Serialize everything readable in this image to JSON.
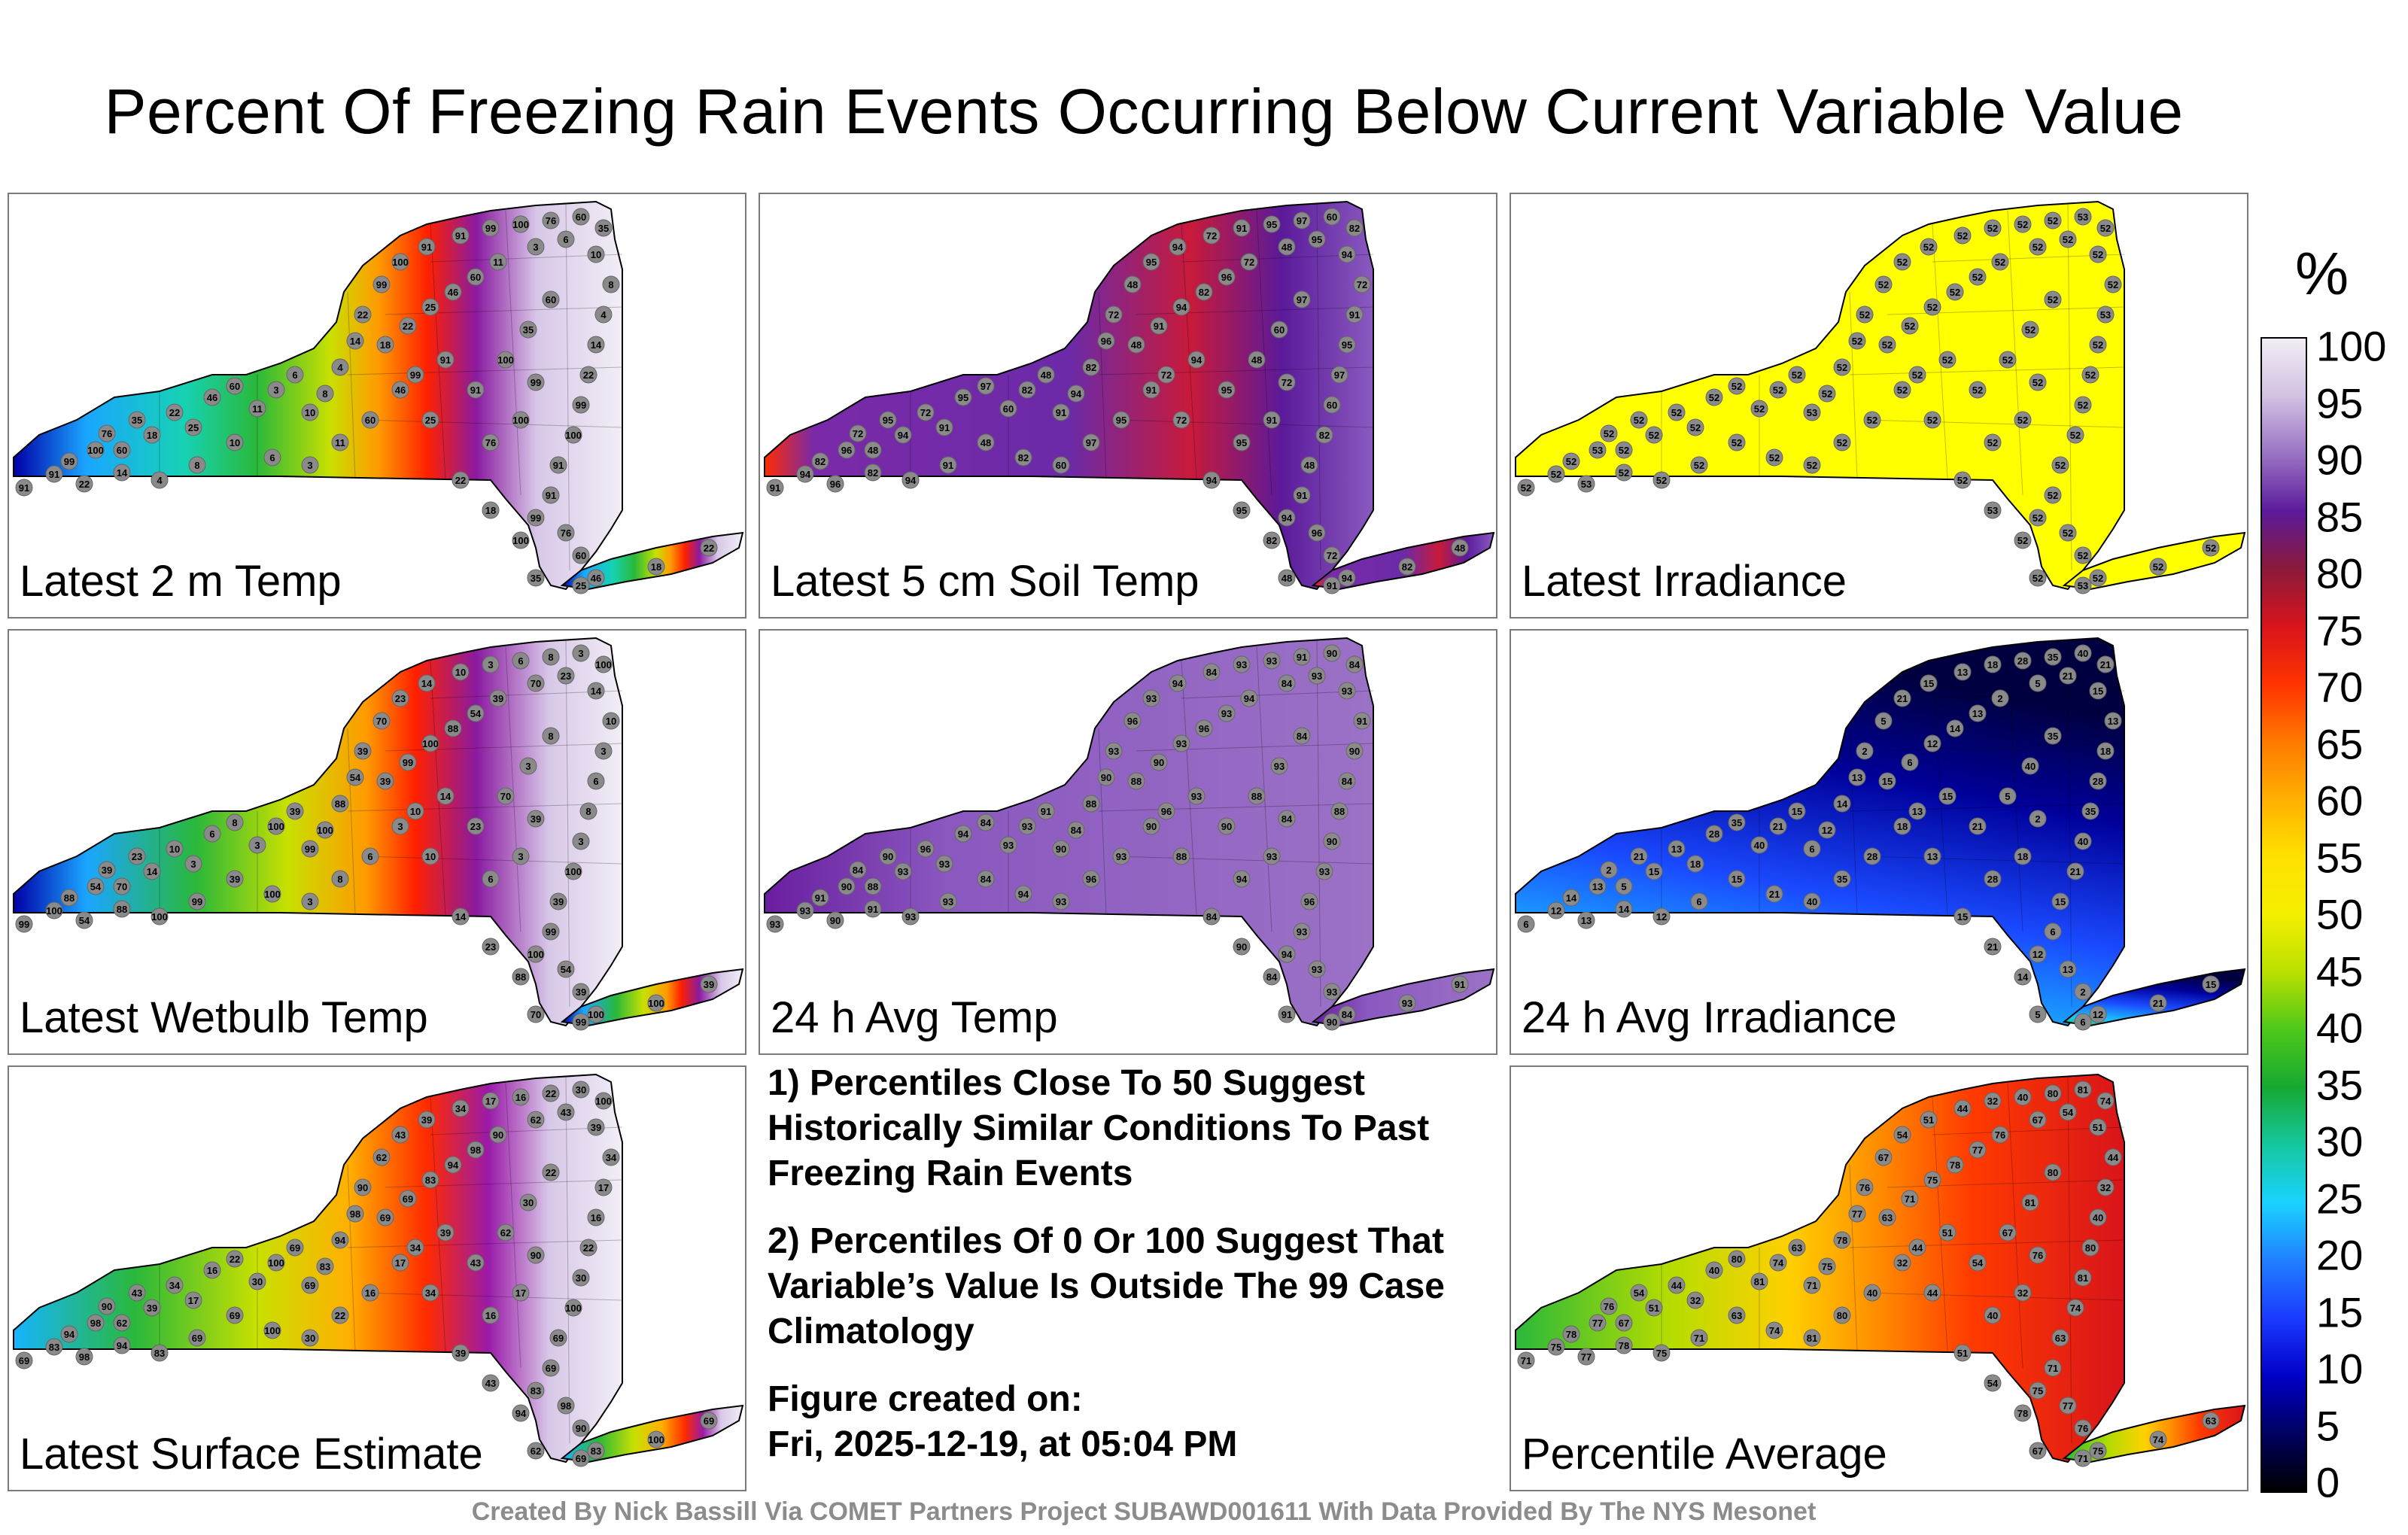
{
  "title": "Percent Of Freezing Rain Events Occurring Below Current Variable Value",
  "panels": [
    {
      "label": "Latest 2 m Temp",
      "palette": "temp",
      "sample_values": [
        "91",
        "91",
        "99",
        "100",
        "76",
        "60",
        "35",
        "18",
        "22",
        "25",
        "46",
        "60",
        "11",
        "3",
        "6",
        "10",
        "8",
        "4",
        "14",
        "22",
        "99",
        "100"
      ]
    },
    {
      "label": "Latest 5 cm Soil Temp",
      "palette": "soil",
      "sample_values": [
        "91",
        "94",
        "82",
        "96",
        "72",
        "48",
        "95",
        "94",
        "72",
        "91",
        "95",
        "97",
        "60",
        "82",
        "48"
      ]
    },
    {
      "label": "Latest Irradiance",
      "palette": "irr",
      "sample_values": [
        "52",
        "52",
        "52",
        "53",
        "52",
        "52",
        "52",
        "52",
        "52",
        "52",
        "52",
        "52"
      ]
    },
    {
      "label": "Latest Wetbulb Temp",
      "palette": "wet",
      "sample_values": [
        "99",
        "100",
        "88",
        "54",
        "39",
        "70",
        "23",
        "14",
        "10",
        "3",
        "6",
        "8",
        "3",
        "100",
        "39"
      ]
    },
    {
      "label": "24 h Avg Temp",
      "palette": "avg",
      "sample_values": [
        "93",
        "93",
        "91",
        "90",
        "84",
        "88",
        "90",
        "93",
        "96",
        "93",
        "94",
        "84"
      ]
    },
    {
      "label": "24 h Avg Irradiance",
      "palette": "avgirr",
      "sample_values": [
        "6",
        "12",
        "14",
        "13",
        "2",
        "5",
        "21",
        "15",
        "13",
        "18",
        "28",
        "35",
        "40",
        "21",
        "15"
      ]
    },
    {
      "label": "Latest Surface Estimate",
      "palette": "surf",
      "sample_values": [
        "69",
        "83",
        "94",
        "98",
        "90",
        "62",
        "43",
        "39",
        "34",
        "17",
        "16",
        "22",
        "30",
        "100",
        "69"
      ]
    },
    {
      "label": "Percentile Average",
      "palette": "pavg",
      "sample_values": [
        "71",
        "75",
        "78",
        "77",
        "76",
        "67",
        "54",
        "51",
        "44",
        "32",
        "40",
        "80",
        "81",
        "74",
        "63"
      ]
    }
  ],
  "notes": [
    "1) Percentiles Close To 50 Suggest Historically Similar Conditions To Past Freezing Rain Events",
    "2) Percentiles Of 0 Or 100 Suggest That Variable’s Value Is Outside The 99 Case Climatology",
    "Figure created on:",
    "Fri, 2025-12-19, at 05:04 PM"
  ],
  "credit": "Created By Nick Bassill Via COMET Partners Project SUBAWD001611 With Data Provided By The NYS Mesonet",
  "colorbar": {
    "unit": "%",
    "ticks": [
      "100",
      "95",
      "90",
      "85",
      "80",
      "75",
      "70",
      "65",
      "60",
      "55",
      "50",
      "45",
      "40",
      "35",
      "30",
      "25",
      "20",
      "15",
      "10",
      "5",
      "0"
    ],
    "stops": [
      "#f2eef6",
      "#d2c1e2",
      "#9a73c4",
      "#5b1a9a",
      "#8b1a3a",
      "#d8141b",
      "#ff3300",
      "#ff7a00",
      "#ffb000",
      "#ffe100",
      "#f4f000",
      "#b8e000",
      "#4cc81a",
      "#16a832",
      "#16c8a0",
      "#1ad2ff",
      "#2080ff",
      "#1a3aff",
      "#0000c8",
      "#000060",
      "#000000"
    ]
  },
  "colors": {
    "outline": "#000000",
    "panel_border": "#7a7a7a",
    "station_marker": "#8a8a8a",
    "credit_text": "#8c8c8c"
  }
}
